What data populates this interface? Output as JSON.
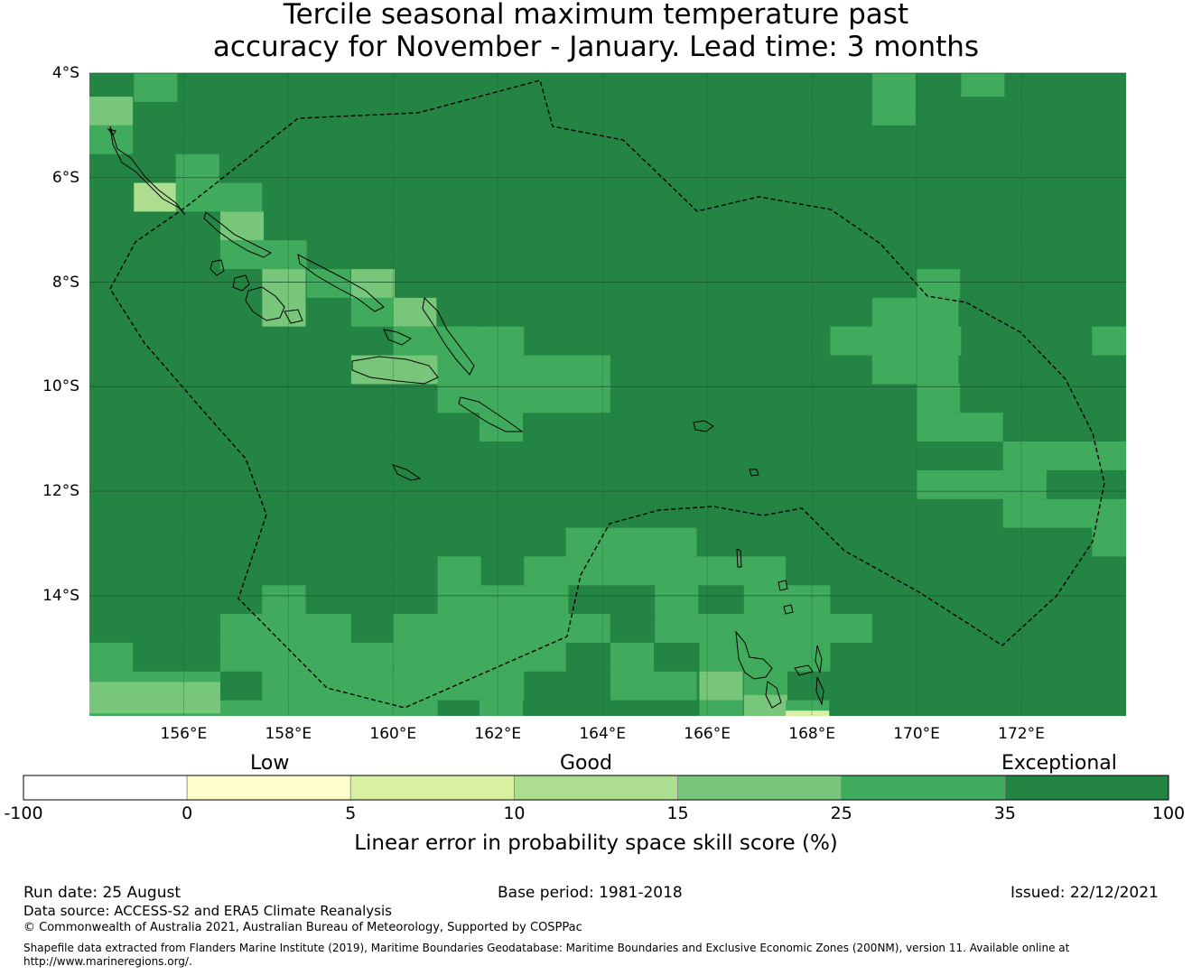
{
  "title_line1": "Tercile seasonal maximum temperature past",
  "title_line2": "accuracy for November - January. Lead time: 3 months",
  "map": {
    "lon_range": [
      154.2,
      174.0
    ],
    "lat_range": [
      -16.3,
      -4.0
    ],
    "lat_ticks": [
      {
        "value": -4,
        "label": "4°S"
      },
      {
        "value": -6,
        "label": "6°S"
      },
      {
        "value": -8,
        "label": "8°S"
      },
      {
        "value": -10,
        "label": "10°S"
      },
      {
        "value": -12,
        "label": "12°S"
      },
      {
        "value": -14,
        "label": "14°S"
      }
    ],
    "lon_ticks": [
      {
        "value": 156,
        "label": "156°E"
      },
      {
        "value": 158,
        "label": "158°E"
      },
      {
        "value": 160,
        "label": "160°E"
      },
      {
        "value": 162,
        "label": "162°E"
      },
      {
        "value": 164,
        "label": "164°E"
      },
      {
        "value": 166,
        "label": "166°E"
      },
      {
        "value": 168,
        "label": "168°E"
      },
      {
        "value": 170,
        "label": "170°E"
      },
      {
        "value": 172,
        "label": "172°E"
      }
    ],
    "base_color": "#238443",
    "cells": [
      {
        "lon": 155.05,
        "lat": -4.0,
        "w": 0.83,
        "h": 0.55,
        "color": "#41ab5d"
      },
      {
        "lon": 154.2,
        "lat": -4.45,
        "w": 0.83,
        "h": 0.55,
        "color": "#78c679"
      },
      {
        "lon": 154.2,
        "lat": -5.0,
        "w": 0.83,
        "h": 0.55,
        "color": "#41ab5d"
      },
      {
        "lon": 155.85,
        "lat": -5.55,
        "w": 0.83,
        "h": 0.55,
        "color": "#41ab5d"
      },
      {
        "lon": 155.05,
        "lat": -6.1,
        "w": 0.83,
        "h": 0.55,
        "color": "#addd8e"
      },
      {
        "lon": 155.85,
        "lat": -6.1,
        "w": 1.65,
        "h": 0.55,
        "color": "#41ab5d"
      },
      {
        "lon": 156.7,
        "lat": -6.65,
        "w": 0.83,
        "h": 0.55,
        "color": "#78c679"
      },
      {
        "lon": 156.7,
        "lat": -7.2,
        "w": 1.65,
        "h": 0.55,
        "color": "#41ab5d"
      },
      {
        "lon": 157.5,
        "lat": -7.75,
        "w": 0.83,
        "h": 1.1,
        "color": "#78c679"
      },
      {
        "lon": 158.35,
        "lat": -7.75,
        "w": 0.83,
        "h": 0.55,
        "color": "#41ab5d"
      },
      {
        "lon": 159.2,
        "lat": -7.75,
        "w": 0.83,
        "h": 0.55,
        "color": "#78c679"
      },
      {
        "lon": 159.2,
        "lat": -8.3,
        "w": 0.83,
        "h": 0.55,
        "color": "#41ab5d"
      },
      {
        "lon": 160.0,
        "lat": -8.3,
        "w": 0.83,
        "h": 0.55,
        "color": "#78c679"
      },
      {
        "lon": 160.0,
        "lat": -8.85,
        "w": 1.65,
        "h": 0.55,
        "color": "#41ab5d"
      },
      {
        "lon": 160.85,
        "lat": -8.85,
        "w": 1.65,
        "h": 0.55,
        "color": "#41ab5d"
      },
      {
        "lon": 159.2,
        "lat": -9.4,
        "w": 1.65,
        "h": 0.55,
        "color": "#78c679"
      },
      {
        "lon": 160.85,
        "lat": -9.4,
        "w": 3.3,
        "h": 0.55,
        "color": "#41ab5d"
      },
      {
        "lon": 160.85,
        "lat": -9.95,
        "w": 3.3,
        "h": 0.55,
        "color": "#41ab5d"
      },
      {
        "lon": 161.65,
        "lat": -10.5,
        "w": 0.83,
        "h": 0.55,
        "color": "#41ab5d"
      },
      {
        "lon": 163.3,
        "lat": -12.7,
        "w": 2.5,
        "h": 0.55,
        "color": "#41ab5d"
      },
      {
        "lon": 160.85,
        "lat": -13.25,
        "w": 0.83,
        "h": 0.55,
        "color": "#41ab5d"
      },
      {
        "lon": 162.5,
        "lat": -13.25,
        "w": 5.0,
        "h": 0.55,
        "color": "#41ab5d"
      },
      {
        "lon": 157.5,
        "lat": -13.8,
        "w": 0.83,
        "h": 0.55,
        "color": "#41ab5d"
      },
      {
        "lon": 160.85,
        "lat": -13.8,
        "w": 2.5,
        "h": 0.55,
        "color": "#41ab5d"
      },
      {
        "lon": 165.0,
        "lat": -13.8,
        "w": 0.83,
        "h": 0.55,
        "color": "#41ab5d"
      },
      {
        "lon": 166.7,
        "lat": -13.8,
        "w": 1.65,
        "h": 0.55,
        "color": "#41ab5d"
      },
      {
        "lon": 156.7,
        "lat": -14.35,
        "w": 2.5,
        "h": 0.55,
        "color": "#41ab5d"
      },
      {
        "lon": 160.0,
        "lat": -14.35,
        "w": 4.15,
        "h": 0.55,
        "color": "#41ab5d"
      },
      {
        "lon": 165.0,
        "lat": -14.35,
        "w": 4.15,
        "h": 0.55,
        "color": "#41ab5d"
      },
      {
        "lon": 154.2,
        "lat": -14.9,
        "w": 0.83,
        "h": 0.55,
        "color": "#41ab5d"
      },
      {
        "lon": 156.7,
        "lat": -14.9,
        "w": 3.3,
        "h": 0.55,
        "color": "#41ab5d"
      },
      {
        "lon": 160.0,
        "lat": -14.9,
        "w": 3.3,
        "h": 0.55,
        "color": "#41ab5d"
      },
      {
        "lon": 164.15,
        "lat": -14.9,
        "w": 0.83,
        "h": 0.55,
        "color": "#41ab5d"
      },
      {
        "lon": 165.85,
        "lat": -14.9,
        "w": 2.5,
        "h": 0.55,
        "color": "#41ab5d"
      },
      {
        "lon": 154.2,
        "lat": -15.45,
        "w": 2.5,
        "h": 0.55,
        "color": "#41ab5d"
      },
      {
        "lon": 157.5,
        "lat": -15.45,
        "w": 5.0,
        "h": 0.55,
        "color": "#41ab5d"
      },
      {
        "lon": 164.15,
        "lat": -15.45,
        "w": 1.65,
        "h": 0.55,
        "color": "#41ab5d"
      },
      {
        "lon": 165.85,
        "lat": -15.45,
        "w": 0.83,
        "h": 0.55,
        "color": "#78c679"
      },
      {
        "lon": 166.7,
        "lat": -15.45,
        "w": 0.83,
        "h": 0.55,
        "color": "#41ab5d"
      },
      {
        "lon": 154.2,
        "lat": -16.0,
        "w": 2.5,
        "h": 0.3,
        "color": "#41ab5d"
      },
      {
        "lon": 156.7,
        "lat": -16.0,
        "w": 4.15,
        "h": 0.3,
        "color": "#41ab5d"
      },
      {
        "lon": 161.65,
        "lat": -16.0,
        "w": 0.83,
        "h": 0.3,
        "color": "#41ab5d"
      },
      {
        "lon": 165.85,
        "lat": -16.0,
        "w": 0.83,
        "h": 0.3,
        "color": "#41ab5d"
      },
      {
        "lon": 154.2,
        "lat": -15.65,
        "w": 2.5,
        "h": 0.6,
        "color": "#78c679"
      },
      {
        "lon": 166.7,
        "lat": -15.9,
        "w": 0.83,
        "h": 0.4,
        "color": "#78c679"
      },
      {
        "lon": 167.5,
        "lat": -16.0,
        "w": 0.83,
        "h": 0.3,
        "color": "#41ab5d"
      },
      {
        "lon": 167.5,
        "lat": -16.2,
        "w": 0.83,
        "h": 0.1,
        "color": "#d9f0a3"
      },
      {
        "lon": 169.15,
        "lat": -4.0,
        "w": 0.83,
        "h": 1.0,
        "color": "#41ab5d"
      },
      {
        "lon": 170.85,
        "lat": -4.0,
        "w": 0.83,
        "h": 0.45,
        "color": "#41ab5d"
      },
      {
        "lon": 170.0,
        "lat": -7.75,
        "w": 0.83,
        "h": 0.55,
        "color": "#41ab5d"
      },
      {
        "lon": 169.15,
        "lat": -8.3,
        "w": 1.65,
        "h": 0.55,
        "color": "#41ab5d"
      },
      {
        "lon": 168.35,
        "lat": -8.85,
        "w": 2.5,
        "h": 0.55,
        "color": "#41ab5d"
      },
      {
        "lon": 173.35,
        "lat": -8.85,
        "w": 0.65,
        "h": 0.55,
        "color": "#41ab5d"
      },
      {
        "lon": 169.15,
        "lat": -9.4,
        "w": 1.65,
        "h": 0.55,
        "color": "#41ab5d"
      },
      {
        "lon": 170.0,
        "lat": -9.95,
        "w": 0.83,
        "h": 0.55,
        "color": "#41ab5d"
      },
      {
        "lon": 170.0,
        "lat": -10.5,
        "w": 1.65,
        "h": 0.55,
        "color": "#41ab5d"
      },
      {
        "lon": 171.65,
        "lat": -11.05,
        "w": 2.35,
        "h": 0.55,
        "color": "#41ab5d"
      },
      {
        "lon": 170.0,
        "lat": -11.6,
        "w": 1.65,
        "h": 0.55,
        "color": "#41ab5d"
      },
      {
        "lon": 171.65,
        "lat": -11.6,
        "w": 0.83,
        "h": 0.55,
        "color": "#41ab5d"
      },
      {
        "lon": 171.65,
        "lat": -12.15,
        "w": 2.35,
        "h": 0.55,
        "color": "#41ab5d"
      },
      {
        "lon": 173.35,
        "lat": -12.7,
        "w": 0.65,
        "h": 0.55,
        "color": "#41ab5d"
      }
    ]
  },
  "colorbar": {
    "colors": [
      "#ffffff",
      "#ffffcc",
      "#d9f0a3",
      "#addd8e",
      "#78c679",
      "#41ab5d",
      "#238443"
    ],
    "ticks": [
      "-100",
      "0",
      "5",
      "10",
      "15",
      "25",
      "35",
      "100"
    ],
    "categories": [
      "Low",
      "Good",
      "Exceptional"
    ],
    "label": "Linear error in probability space skill score (%)"
  },
  "footer": {
    "run_date": "Run date: 25 August",
    "base_period": "Base period: 1981-2018",
    "issued": "Issued: 22/12/2021",
    "data_source": "Data source: ACCESS-S2 and ERA5 Climate Reanalysis",
    "copyright": "© Commonwealth of Australia 2021, Australian Bureau of Meteorology, Supported by COSPPac",
    "shapefile_line1": "Shapefile data extracted from Flanders Marine Institute (2019), Maritime Boundaries Geodatabase: Maritime Boundaries and Exclusive Economic Zones (200NM), version 11. Available online at",
    "shapefile_line2": "http://www.marineregions.org/."
  }
}
